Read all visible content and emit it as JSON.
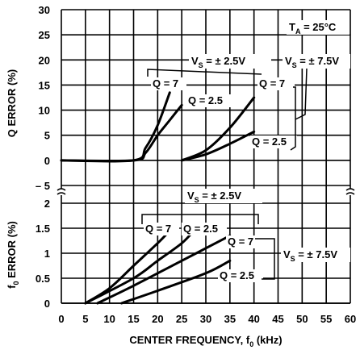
{
  "chart_data": [
    {
      "type": "line",
      "name": "q-error",
      "ylabel": "Q ERROR (%)",
      "ylim": [
        -5,
        30
      ],
      "yticks": [
        -5,
        0,
        5,
        10,
        15,
        20,
        25,
        30
      ],
      "xlim": [
        0,
        60
      ],
      "grid": true,
      "series": [
        {
          "points": [
            [
              0,
              0
            ],
            [
              15,
              0
            ],
            [
              17.5,
              2.5
            ],
            [
              20,
              7
            ],
            [
              22.5,
              13.5
            ]
          ]
        },
        {
          "points": [
            [
              0,
              0
            ],
            [
              15,
              0
            ],
            [
              17.5,
              1.5
            ],
            [
              20,
              5
            ],
            [
              22.5,
              8
            ],
            [
              25,
              11
            ]
          ]
        },
        {
          "points": [
            [
              25,
              0
            ],
            [
              30,
              2
            ],
            [
              35,
              6.5
            ],
            [
              40,
              12.5
            ]
          ]
        },
        {
          "points": [
            [
              25,
              0
            ],
            [
              30,
              1.2
            ],
            [
              35,
              3.3
            ],
            [
              40,
              5.7
            ]
          ]
        }
      ],
      "annotations": {
        "ta": {
          "main": "T",
          "sub": "A",
          "rest": " = 25°C"
        },
        "vs_low": {
          "main": "V",
          "sub": "S",
          "rest": " = ± 2.5V"
        },
        "vs_high": {
          "main": "V",
          "sub": "S",
          "rest": " = ± 7.5V"
        },
        "q7_low": "Q = 7",
        "q25_low": "Q = 2.5",
        "q7_high": "Q = 7",
        "q25_high": "Q = 2.5"
      }
    },
    {
      "type": "line",
      "name": "f0-error",
      "ylabel": {
        "main": "f",
        "sub": "0",
        "rest": " ERROR (%)"
      },
      "ylim": [
        0,
        2
      ],
      "yticks": [
        0,
        0.5,
        1,
        1.5,
        2
      ],
      "xlim": [
        0,
        60
      ],
      "grid": true,
      "series": [
        {
          "points": [
            [
              5,
              0
            ],
            [
              10,
              0.3
            ],
            [
              15,
              0.75
            ],
            [
              20,
              1.2
            ],
            [
              22.5,
              1.45
            ]
          ]
        },
        {
          "points": [
            [
              5,
              0
            ],
            [
              15,
              0.5
            ],
            [
              20,
              0.85
            ],
            [
              25,
              1.2
            ],
            [
              27.5,
              1.45
            ]
          ]
        },
        {
          "points": [
            [
              7.5,
              0
            ],
            [
              15,
              0.35
            ],
            [
              25,
              0.85
            ],
            [
              35,
              1.35
            ]
          ]
        },
        {
          "points": [
            [
              12.5,
              0
            ],
            [
              20,
              0.25
            ],
            [
              30,
              0.6
            ],
            [
              35,
              0.85
            ]
          ]
        }
      ],
      "annotations": {
        "vs_low": {
          "main": "V",
          "sub": "S",
          "rest": " = ± 2.5V"
        },
        "vs_high": {
          "main": "V",
          "sub": "S",
          "rest": " = ± 7.5V"
        },
        "q7_low": "Q = 7",
        "q25_low": "Q = 2.5",
        "q7_high": "Q = 7",
        "q25_high": "Q = 2.5"
      }
    }
  ],
  "x_axis": {
    "ticks": [
      0,
      5,
      10,
      15,
      20,
      25,
      30,
      35,
      40,
      45,
      50,
      55,
      60
    ],
    "xlabel": {
      "main": "CENTER FREQUENCY, f",
      "sub": "0",
      "rest": " (kHz)"
    }
  }
}
